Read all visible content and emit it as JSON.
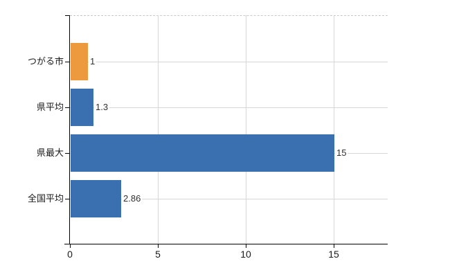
{
  "chart_data": {
    "type": "bar",
    "orientation": "horizontal",
    "categories": [
      "つがる市",
      "県平均",
      "県最大",
      "全国平均"
    ],
    "values": [
      1,
      1.3,
      15,
      2.86
    ],
    "value_labels": [
      "1",
      "1.3",
      "15",
      "2.86"
    ],
    "series_colors": [
      "#ec9a3d",
      "#3b70b0",
      "#3b70b0",
      "#3b70b0"
    ],
    "x_ticks": [
      0,
      5,
      10,
      15
    ],
    "xlim": [
      0,
      18.1
    ],
    "grid": true,
    "legend_position": "none"
  },
  "style": {
    "axis_color": "#000000",
    "grid_color": "#d6d6d6",
    "top_border_color": "#c8c8c8",
    "label_color": "#1a1a1a",
    "value_label_color": "#303030",
    "background": "#ffffff"
  }
}
